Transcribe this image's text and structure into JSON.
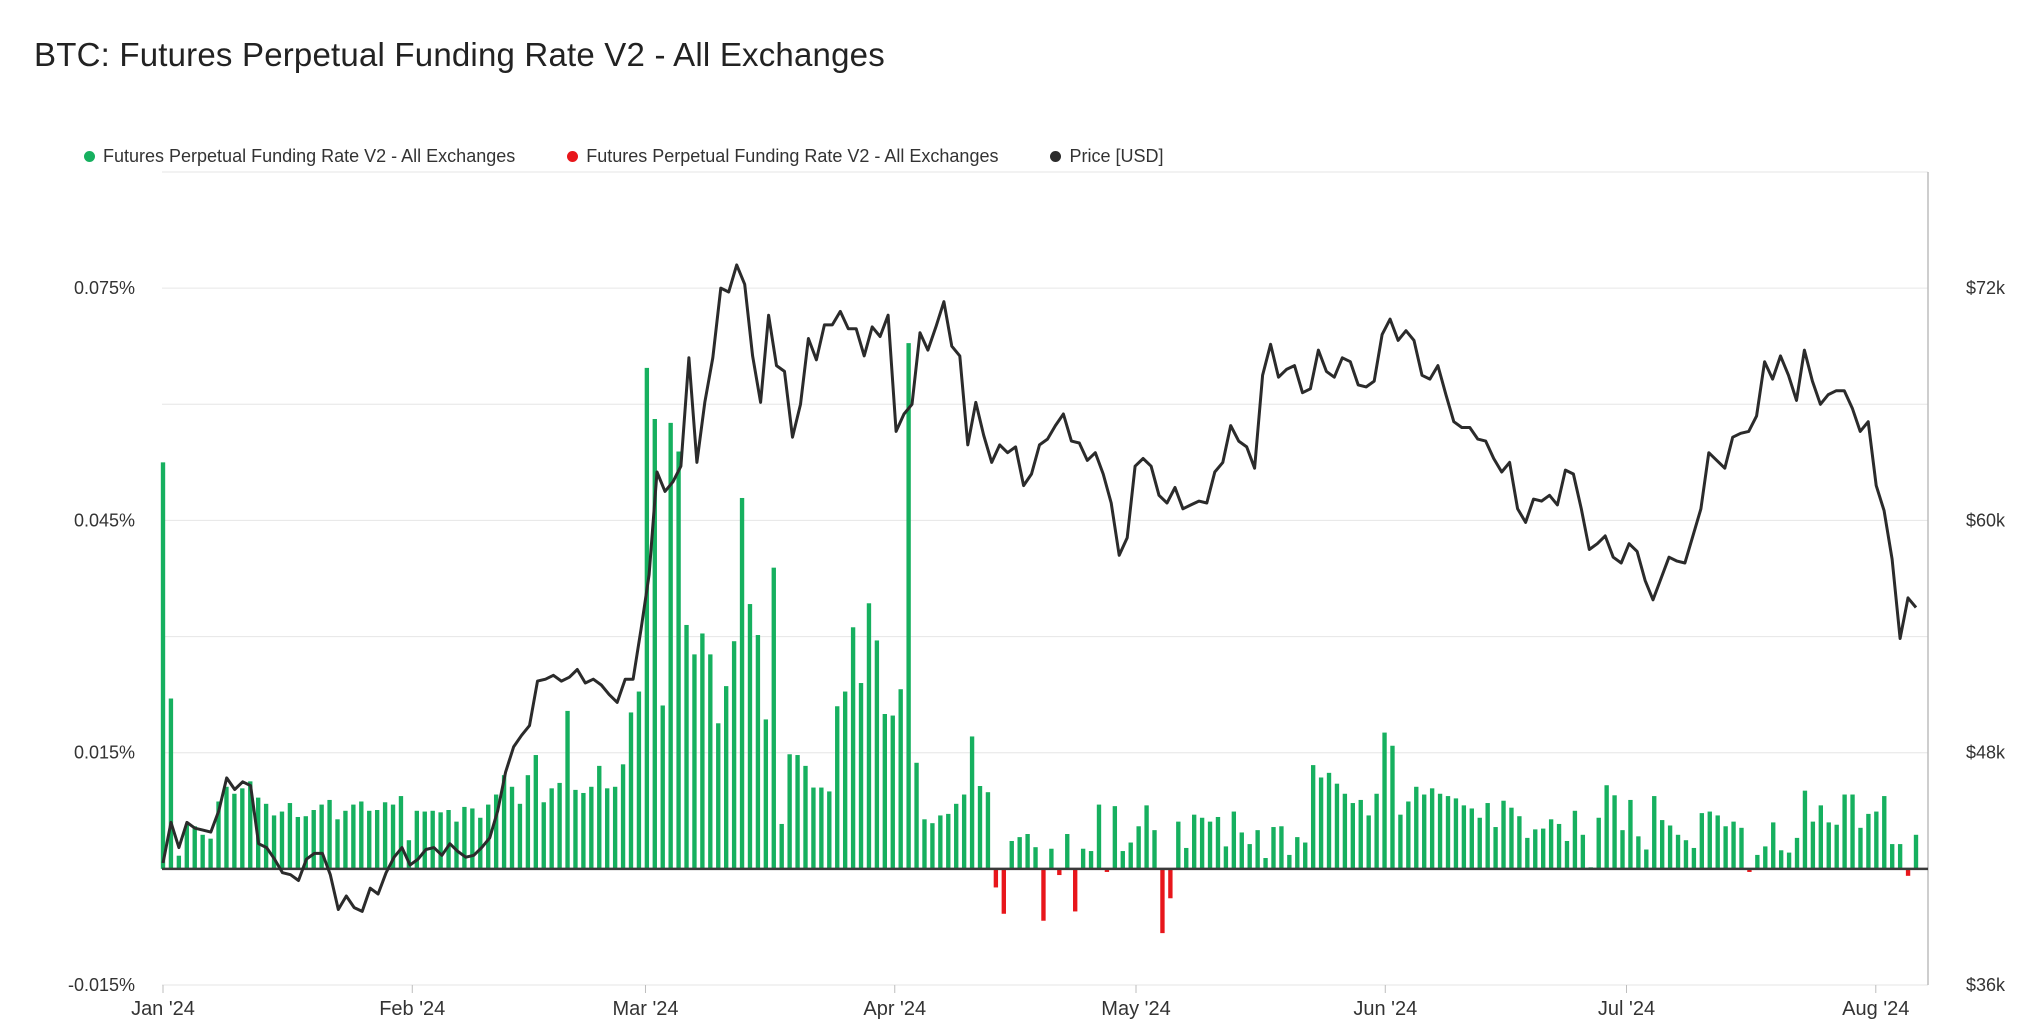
{
  "title": "BTC: Futures Perpetual Funding Rate V2 - All Exchanges",
  "legend": [
    {
      "label": "Futures Perpetual Funding Rate V2 - All Exchanges",
      "color": "#16b05f"
    },
    {
      "label": "Futures Perpetual Funding Rate V2 - All Exchanges",
      "color": "#e8161b"
    },
    {
      "label": "Price [USD]",
      "color": "#2b2b2b"
    }
  ],
  "chart_data": {
    "type": "bar",
    "title": "BTC: Futures Perpetual Funding Rate V2 - All Exchanges",
    "x_tick_labels": [
      "Jan '24",
      "Feb '24",
      "Mar '24",
      "Apr '24",
      "May '24",
      "Jun '24",
      "Jul '24",
      "Aug '24"
    ],
    "x_range": [
      "2024-01-01",
      "2024-08-06"
    ],
    "y_left": {
      "ticks": [
        -0.015,
        0.015,
        0.045,
        0.075
      ],
      "tick_labels": [
        "-0.015%",
        "0.015%",
        "0.045%",
        "0.075%"
      ],
      "ylim": [
        -0.015,
        0.09
      ],
      "unit": "%"
    },
    "y_right": {
      "ticks": [
        36000,
        48000,
        60000,
        72000
      ],
      "tick_labels": [
        "$36k",
        "$48k",
        "$60k",
        "$72k"
      ],
      "ylim": [
        36000,
        78000
      ]
    },
    "grid": true,
    "legend_position": "top-left",
    "positive_color": "#16b05f",
    "negative_color": "#e8161b",
    "price_color": "#2b2b2b",
    "series": [
      {
        "name": "Futures Perpetual Funding Rate V2 - All Exchanges",
        "kind": "bar",
        "values": [
          0.0525,
          0.022,
          0.0017,
          0.0057,
          0.0055,
          0.0044,
          0.0039,
          0.0087,
          0.0106,
          0.0097,
          0.0104,
          0.0113,
          0.0092,
          0.0084,
          0.0069,
          0.0074,
          0.0085,
          0.0067,
          0.0068,
          0.0076,
          0.0083,
          0.0089,
          0.0064,
          0.0075,
          0.0083,
          0.0087,
          0.0075,
          0.0076,
          0.0086,
          0.0083,
          0.0094,
          0.0037,
          0.0075,
          0.0074,
          0.0075,
          0.0073,
          0.0076,
          0.0061,
          0.008,
          0.0078,
          0.0066,
          0.0083,
          0.0096,
          0.0121,
          0.0106,
          0.0084,
          0.0121,
          0.0147,
          0.0086,
          0.0104,
          0.0111,
          0.0204,
          0.0102,
          0.0098,
          0.0106,
          0.0133,
          0.0104,
          0.0106,
          0.0135,
          0.0202,
          0.0229,
          0.0647,
          0.0581,
          0.0211,
          0.0576,
          0.0539,
          0.0315,
          0.0277,
          0.0304,
          0.0277,
          0.0188,
          0.0236,
          0.0294,
          0.0479,
          0.0342,
          0.0302,
          0.0193,
          0.0389,
          0.0058,
          0.0148,
          0.0147,
          0.0133,
          0.0105,
          0.0105,
          0.01,
          0.021,
          0.0229,
          0.0312,
          0.024,
          0.0343,
          0.0295,
          0.02,
          0.0198,
          0.0232,
          0.0679,
          0.0137,
          0.0064,
          0.0059,
          0.0069,
          0.0071,
          0.0084,
          0.0096,
          0.0171,
          0.0107,
          0.0099,
          -0.0024,
          -0.0058,
          0.0036,
          0.0041,
          0.0045,
          0.0028,
          -0.0067,
          0.0026,
          -0.0008,
          0.0045,
          -0.0055,
          0.0026,
          0.0023,
          0.0083,
          -0.0004,
          0.0081,
          0.0023,
          0.0034,
          0.0055,
          0.0082,
          0.005,
          -0.0083,
          -0.0038,
          0.0061,
          0.0027,
          0.007,
          0.0066,
          0.0061,
          0.0067,
          0.0029,
          0.0074,
          0.0047,
          0.0032,
          0.005,
          0.0014,
          0.0054,
          0.0055,
          0.0018,
          0.0041,
          0.0034,
          0.0134,
          0.0118,
          0.0124,
          0.011,
          0.0097,
          0.0085,
          0.0089,
          0.0069,
          0.0097,
          0.0176,
          0.0159,
          0.007,
          0.0087,
          0.0106,
          0.0096,
          0.0104,
          0.0097,
          0.0094,
          0.0091,
          0.0082,
          0.0078,
          0.0066,
          0.0085,
          0.0054,
          0.0088,
          0.0079,
          0.0068,
          0.004,
          0.0051,
          0.0052,
          0.0064,
          0.0058,
          0.0036,
          0.0075,
          0.0044,
          0.0002,
          0.0066,
          0.0108,
          0.0095,
          0.005,
          0.0089,
          0.0042,
          0.0025,
          0.0094,
          0.0063,
          0.0056,
          0.0044,
          0.0037,
          0.0027,
          0.0072,
          0.0074,
          0.0069,
          0.0055,
          0.0061,
          0.0053,
          -0.0004,
          0.0018,
          0.0029,
          0.006,
          0.0024,
          0.0021,
          0.004,
          0.0101,
          0.0061,
          0.0082,
          0.006,
          0.0057,
          0.0096,
          0.0096,
          0.0053,
          0.0071,
          0.0074,
          0.0094,
          0.0032,
          0.0032,
          -0.0009,
          0.0044
        ]
      },
      {
        "name": "Price [USD]",
        "kind": "line",
        "values": [
          42300,
          44400,
          43100,
          44400,
          44100,
          44000,
          43900,
          45000,
          46700,
          46100,
          46500,
          46300,
          43300,
          43100,
          42500,
          41800,
          41700,
          41400,
          42500,
          42800,
          42800,
          41700,
          39900,
          40600,
          40000,
          39800,
          41000,
          40700,
          41800,
          42600,
          43100,
          42200,
          42500,
          43000,
          43100,
          42700,
          43300,
          42900,
          42600,
          42700,
          43100,
          43600,
          45000,
          47000,
          48300,
          48900,
          49400,
          51700,
          51800,
          52000,
          51700,
          51900,
          52300,
          51600,
          51800,
          51500,
          51000,
          50600,
          51800,
          51800,
          54400,
          57200,
          62500,
          61500,
          62000,
          62800,
          68400,
          63000,
          66100,
          68400,
          72000,
          71800,
          73200,
          72200,
          68500,
          66100,
          70600,
          68000,
          67700,
          64300,
          66000,
          69400,
          68300,
          70100,
          70100,
          70800,
          69900,
          69900,
          68500,
          70000,
          69500,
          70600,
          64600,
          65500,
          66000,
          69700,
          68800,
          70000,
          71300,
          69000,
          68500,
          63900,
          66100,
          64400,
          63000,
          63900,
          63500,
          63800,
          61800,
          62400,
          63900,
          64200,
          64900,
          65500,
          64100,
          64000,
          63100,
          63500,
          62400,
          60900,
          58200,
          59100,
          62800,
          63200,
          62800,
          61300,
          60900,
          61700,
          60600,
          60800,
          61000,
          60900,
          62500,
          63000,
          64900,
          64100,
          63800,
          62700,
          67500,
          69100,
          67400,
          67800,
          68000,
          66600,
          66800,
          68800,
          67700,
          67400,
          68400,
          68200,
          67000,
          66900,
          67200,
          69600,
          70400,
          69300,
          69800,
          69300,
          67500,
          67300,
          68000,
          66500,
          65100,
          64800,
          64800,
          64200,
          64100,
          63200,
          62500,
          63000,
          60600,
          59900,
          61100,
          61000,
          61300,
          60800,
          62600,
          62400,
          60600,
          58500,
          58800,
          59200,
          58100,
          57800,
          58800,
          58400,
          56900,
          55900,
          57000,
          58100,
          57900,
          57800,
          59200,
          60600,
          63500,
          63100,
          62700,
          64300,
          64500,
          64600,
          65400,
          68200,
          67300,
          68500,
          67500,
          66200,
          68800,
          67200,
          66000,
          66500,
          66700,
          66700,
          65800,
          64600,
          65100,
          61800,
          60500,
          58000,
          53900,
          56000,
          55500
        ]
      }
    ]
  }
}
